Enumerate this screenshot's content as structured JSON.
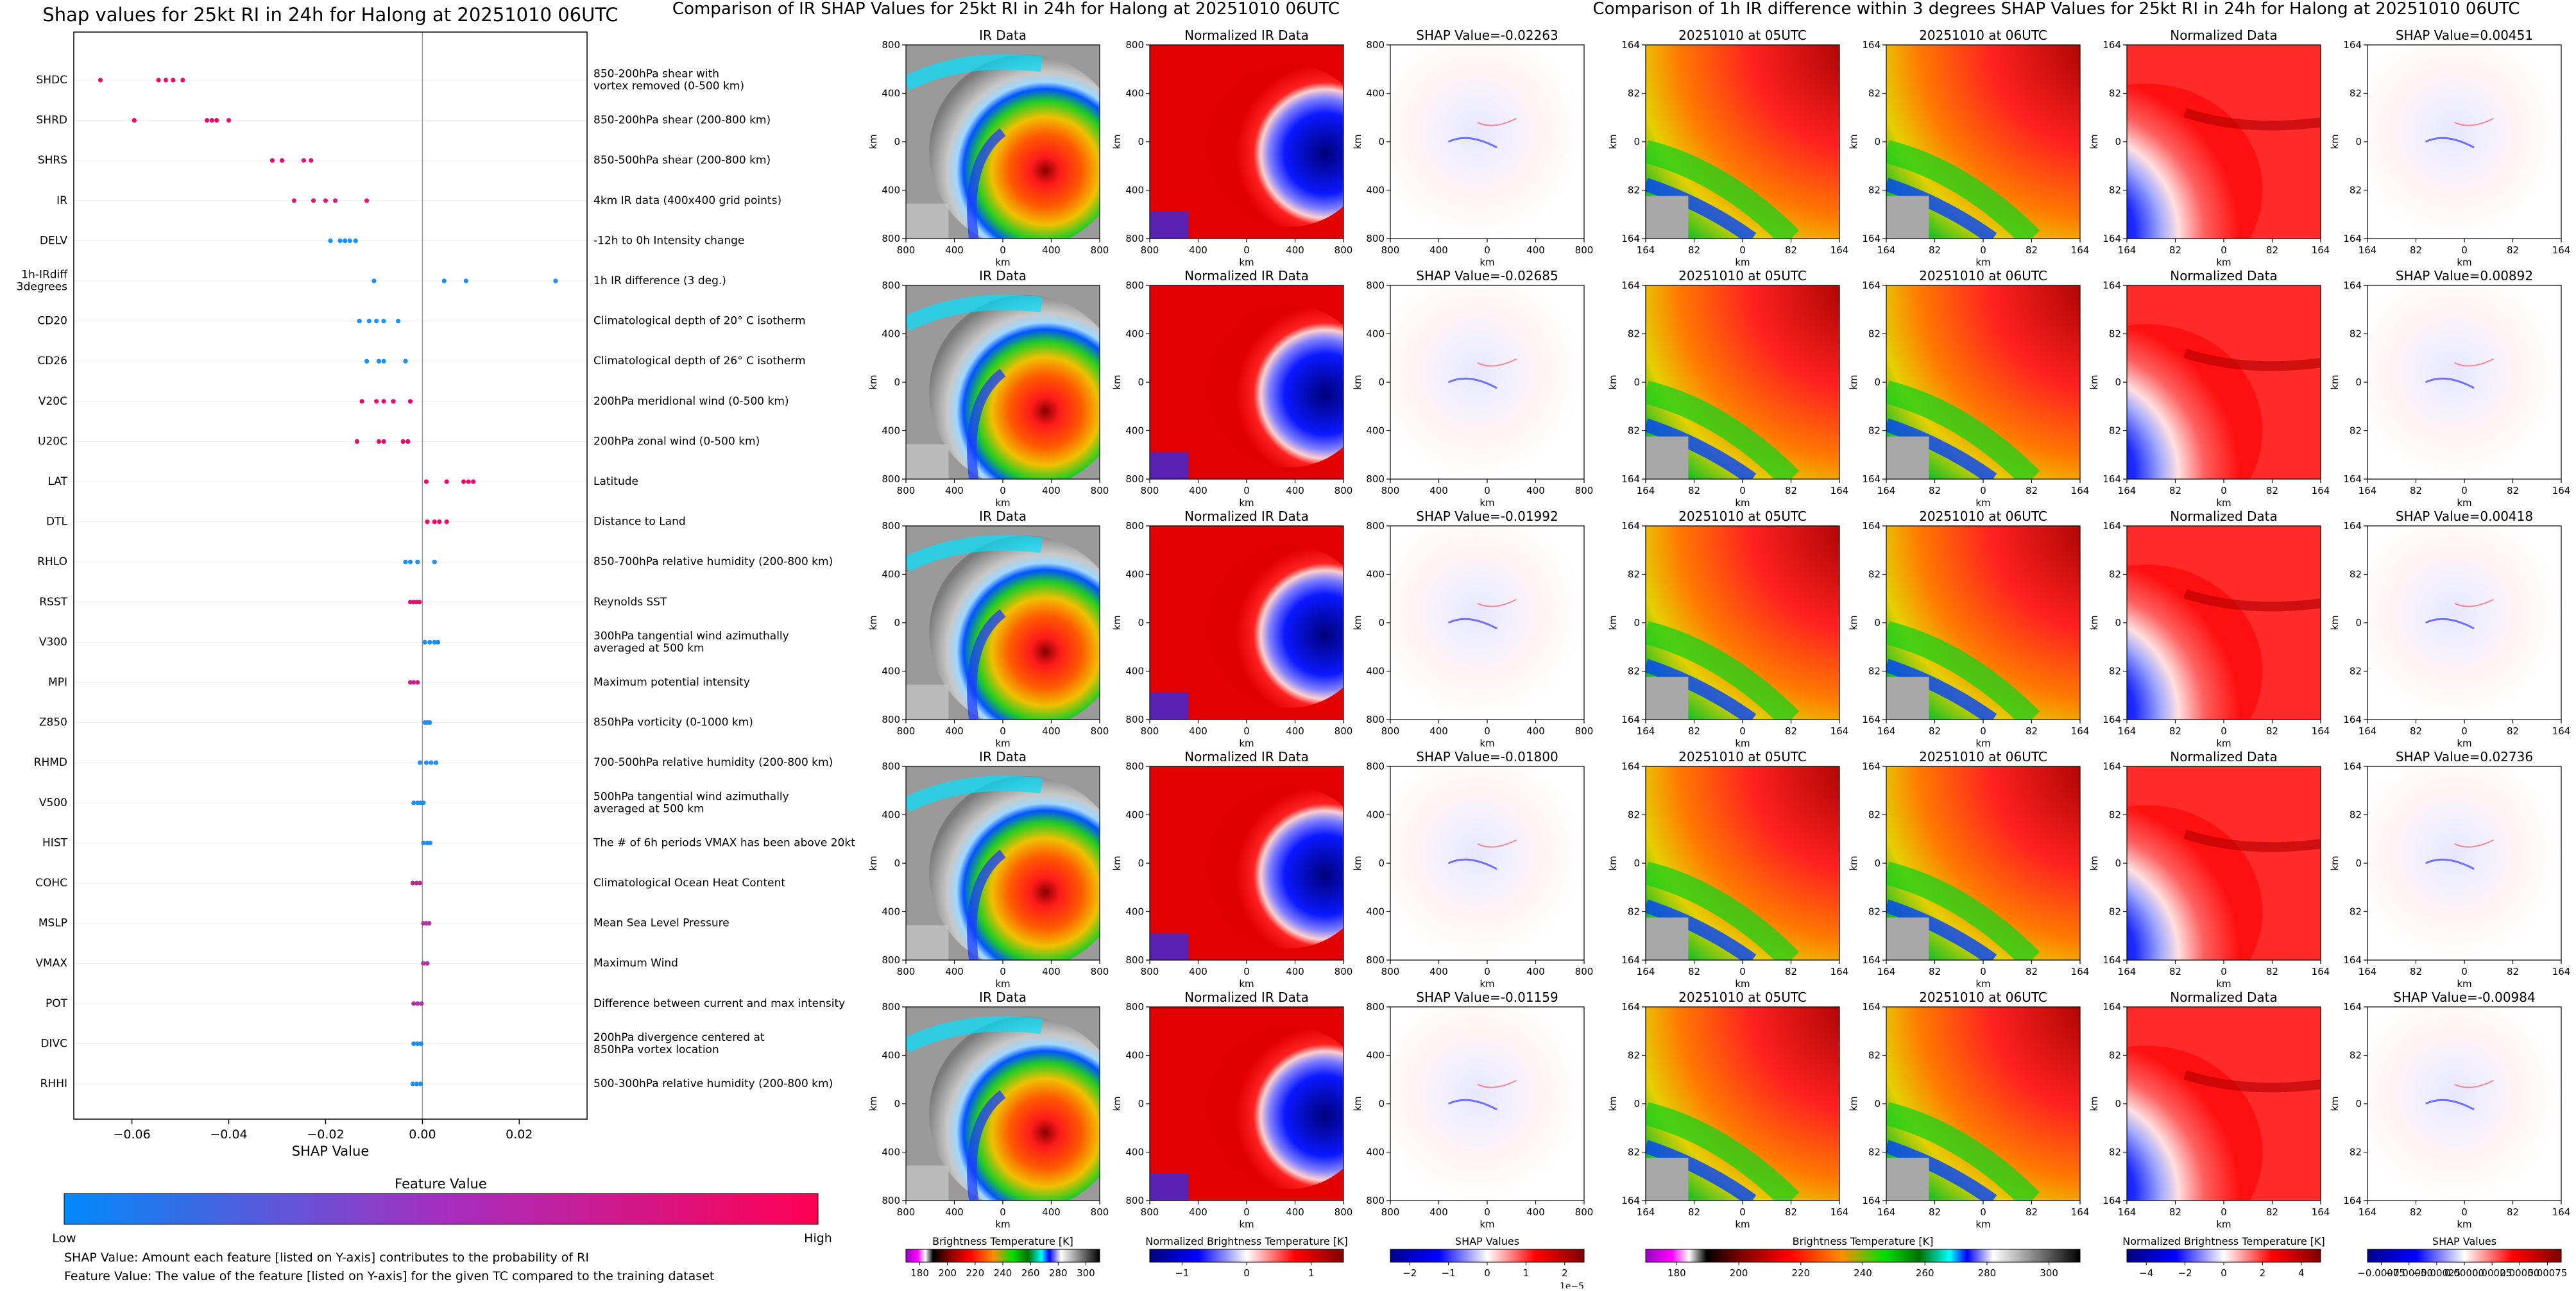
{
  "chart_data": [
    {
      "type": "scatter",
      "title": "Shap values for 25kt RI in 24h for Halong at 20251010 06UTC",
      "xlabel": "SHAP Value",
      "xlim": [
        -0.072,
        0.034
      ],
      "xticks": [
        -0.06,
        -0.04,
        -0.02,
        0.0,
        0.02
      ],
      "xtick_labels": [
        "−0.06",
        "−0.04",
        "−0.02",
        "0.00",
        "0.02"
      ],
      "features": [
        {
          "name": "SHDC",
          "desc": "850-200hPa shear with\nvortex removed (0-500 km)",
          "values": [
            -0.0665,
            -0.0545,
            -0.053,
            -0.0515,
            -0.0495
          ],
          "color": "#ec0a6a"
        },
        {
          "name": "SHRD",
          "desc": "850-200hPa shear (200-800 km)",
          "values": [
            -0.0595,
            -0.0445,
            -0.0435,
            -0.0425,
            -0.04
          ],
          "color": "#ec0a6a"
        },
        {
          "name": "SHRS",
          "desc": "850-500hPa shear (200-800 km)",
          "values": [
            -0.031,
            -0.029,
            -0.0245,
            -0.023
          ],
          "color": "#dc1375"
        },
        {
          "name": "IR",
          "desc": "4km IR data (400x400 grid points)",
          "values": [
            -0.0265,
            -0.0225,
            -0.02,
            -0.018,
            -0.0115
          ],
          "color": "#d41c7c"
        },
        {
          "name": "DELV",
          "desc": "-12h to 0h Intensity change",
          "values": [
            -0.019,
            -0.017,
            -0.016,
            -0.015,
            -0.0138
          ],
          "color": "#1e8ef0"
        },
        {
          "name": "1h-IRdiff\n3degrees",
          "desc": "1h IR difference (3 deg.)",
          "values": [
            -0.01,
            0.0045,
            0.009,
            0.0275
          ],
          "color": "#1e8ef0"
        },
        {
          "name": "CD20",
          "desc": "Climatological depth of 20° C isotherm",
          "values": [
            -0.013,
            -0.011,
            -0.0095,
            -0.008,
            -0.005
          ],
          "color": "#1e8ef0"
        },
        {
          "name": "CD26",
          "desc": "Climatological depth of 26° C isotherm",
          "values": [
            -0.0115,
            -0.009,
            -0.008,
            -0.0035
          ],
          "color": "#1e8ef0"
        },
        {
          "name": "V20C",
          "desc": "200hPa meridional wind (0-500 km)",
          "values": [
            -0.0125,
            -0.0095,
            -0.008,
            -0.006,
            -0.0025
          ],
          "color": "#e5096e"
        },
        {
          "name": "U20C",
          "desc": "200hPa zonal wind (0-500 km)",
          "values": [
            -0.0135,
            -0.009,
            -0.008,
            -0.004,
            -0.003
          ],
          "color": "#e5096e"
        },
        {
          "name": "LAT",
          "desc": "Latitude",
          "values": [
            0.0008,
            0.005,
            0.0085,
            0.0095,
            0.0105
          ],
          "color": "#ec0a6a"
        },
        {
          "name": "DTL",
          "desc": "Distance to Land",
          "values": [
            0.001,
            0.0025,
            0.0035,
            0.005
          ],
          "color": "#ec0a6a"
        },
        {
          "name": "RHLO",
          "desc": "850-700hPa relative humidity (200-800 km)",
          "values": [
            -0.0035,
            -0.0025,
            -0.001,
            0.0025
          ],
          "color": "#1e8ef0"
        },
        {
          "name": "RSST",
          "desc": "Reynolds SST",
          "values": [
            -0.0025,
            -0.0018,
            -0.0012,
            -0.0006
          ],
          "color": "#dc1375"
        },
        {
          "name": "V300",
          "desc": "300hPa tangential wind azimuthally\naveraged at 500 km",
          "values": [
            0.0005,
            0.0015,
            0.0025,
            0.0032
          ],
          "color": "#1e8ef0"
        },
        {
          "name": "MPI",
          "desc": "Maximum potential intensity",
          "values": [
            -0.0025,
            -0.0018,
            -0.001
          ],
          "color": "#c2248c"
        },
        {
          "name": "Z850",
          "desc": "850hPa vorticity (0-1000 km)",
          "values": [
            0.0005,
            0.001,
            0.0015
          ],
          "color": "#1e8ef0"
        },
        {
          "name": "RHMD",
          "desc": "700-500hPa relative humidity (200-800 km)",
          "values": [
            -0.0005,
            0.0008,
            0.0018,
            0.0028
          ],
          "color": "#1e8ef0"
        },
        {
          "name": "V500",
          "desc": "500hPa tangential wind azimuthally\naveraged at 500 km",
          "values": [
            -0.0018,
            -0.001,
            -0.0004,
            0.0002
          ],
          "color": "#1e8ef0"
        },
        {
          "name": "HIST",
          "desc": "The # of 6h periods VMAX has been above 20kt",
          "values": [
            0.0002,
            0.001,
            0.0016
          ],
          "color": "#1e8ef0"
        },
        {
          "name": "COHC",
          "desc": "Climatological Ocean Heat Content",
          "values": [
            -0.002,
            -0.0012,
            -0.0005
          ],
          "color": "#b62e94"
        },
        {
          "name": "MSLP",
          "desc": "Mean Sea Level Pressure",
          "values": [
            0.0002,
            0.0008,
            0.0014
          ],
          "color": "#ad36a0"
        },
        {
          "name": "VMAX",
          "desc": "Maximum Wind",
          "values": [
            0.0002,
            0.001
          ],
          "color": "#ad36a0"
        },
        {
          "name": "POT",
          "desc": "Difference between current and max intensity",
          "values": [
            -0.0018,
            -0.001,
            -0.0002
          ],
          "color": "#ad36a0"
        },
        {
          "name": "DIVC",
          "desc": "200hPa divergence centered at\n850hPa vortex location",
          "values": [
            -0.0018,
            -0.001,
            -0.0003
          ],
          "color": "#1e8ef0"
        },
        {
          "name": "RHHI",
          "desc": "500-300hPa relative humidity (200-800 km)",
          "values": [
            -0.002,
            -0.0012,
            -0.0004
          ],
          "color": "#1e8ef0"
        }
      ],
      "colorbar": {
        "title": "Feature Value",
        "low": "Low",
        "high": "High",
        "colors": [
          "#008afa",
          "#ff0052"
        ]
      },
      "notes": [
        "SHAP Value: Amount each feature [listed on Y-axis] contributes to the probability of RI",
        "Feature Value: The value of the feature [listed on Y-axis] for the given TC compared to the training dataset"
      ]
    },
    {
      "type": "heatmap",
      "title": "Comparison of IR SHAP Values for 25kt RI in 24h for Halong at 20251010 06UTC",
      "columns": [
        {
          "kind": "ir",
          "label": "IR Data"
        },
        {
          "kind": "norm",
          "label": "Normalized IR Data"
        },
        {
          "kind": "shap",
          "label": "SHAP Value="
        }
      ],
      "shap_values": [
        "-0.02263",
        "-0.02685",
        "-0.01992",
        "-0.01800",
        "-0.01159"
      ],
      "xticks": [
        "800",
        "400",
        "0",
        "400",
        "800"
      ],
      "yticks": [
        "800",
        "400",
        "0",
        "400",
        "800"
      ],
      "axis_label": "km",
      "colorbars": [
        {
          "title": "Brightness Temperature [K]",
          "ticks": [
            "180",
            "200",
            "220",
            "240",
            "260",
            "280",
            "300"
          ]
        },
        {
          "title": "Normalized Brightness Temperature [K]",
          "ticks": [
            "−1",
            "0",
            "1"
          ]
        },
        {
          "title": "SHAP Values",
          "ticks": [
            "−2",
            "−1",
            "0",
            "1",
            "2"
          ],
          "offset": "1e−5"
        }
      ]
    },
    {
      "type": "heatmap",
      "title": "Comparison of 1h IR difference within 3 degrees SHAP Values for 25kt RI in 24h for Halong at 20251010 06UTC",
      "columns": [
        {
          "kind": "ir",
          "label": "20251010 at 05UTC"
        },
        {
          "kind": "ir",
          "label": "20251010 at 06UTC"
        },
        {
          "kind": "norm",
          "label": "Normalized Data"
        },
        {
          "kind": "shap",
          "label": "SHAP Value="
        }
      ],
      "shap_values": [
        "0.00451",
        "0.00892",
        "0.00418",
        "0.02736",
        "-0.00984"
      ],
      "xticks": [
        "164",
        "82",
        "0",
        "82",
        "164"
      ],
      "yticks": [
        "164",
        "82",
        "0",
        "82",
        "164"
      ],
      "axis_label": "km",
      "colorbars": [
        {
          "title": "Brightness Temperature [K]",
          "ticks": [
            "180",
            "200",
            "220",
            "240",
            "260",
            "280",
            "300"
          ]
        },
        {
          "title": "Normalized Brightness Temperature [K]",
          "ticks": [
            "−4",
            "−2",
            "0",
            "2",
            "4"
          ]
        },
        {
          "title": "SHAP Values",
          "ticks": [
            "−0.00075",
            "−0.00050",
            "−0.00025",
            "0.00000",
            "0.00025",
            "0.00050",
            "0.00075"
          ]
        }
      ]
    }
  ]
}
